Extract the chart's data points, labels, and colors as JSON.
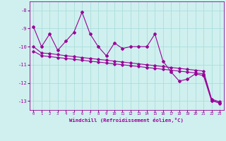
{
  "xlabel": "Windchill (Refroidissement éolien,°C)",
  "background_color": "#cff0ee",
  "grid_color": "#aadddd",
  "line_color": "#990099",
  "x": [
    0,
    1,
    2,
    3,
    4,
    5,
    6,
    7,
    8,
    9,
    10,
    11,
    12,
    13,
    14,
    15,
    16,
    17,
    18,
    19,
    20,
    21,
    22,
    23
  ],
  "y_main": [
    -8.9,
    -10.0,
    -9.3,
    -10.2,
    -9.7,
    -9.2,
    -8.1,
    -9.3,
    -10.0,
    -10.5,
    -9.8,
    -10.1,
    -10.0,
    -10.0,
    -10.0,
    -9.3,
    -10.8,
    -11.4,
    -11.9,
    -11.8,
    -11.5,
    -11.6,
    -13.0,
    -13.1
  ],
  "y_upper": [
    -10.0,
    -10.35,
    -10.38,
    -10.44,
    -10.5,
    -10.55,
    -10.6,
    -10.65,
    -10.7,
    -10.75,
    -10.8,
    -10.85,
    -10.9,
    -10.95,
    -11.0,
    -11.05,
    -11.1,
    -11.15,
    -11.2,
    -11.25,
    -11.3,
    -11.35,
    -12.9,
    -13.05
  ],
  "y_lower": [
    -10.25,
    -10.5,
    -10.55,
    -10.6,
    -10.65,
    -10.7,
    -10.75,
    -10.8,
    -10.85,
    -10.9,
    -10.95,
    -11.0,
    -11.05,
    -11.1,
    -11.15,
    -11.2,
    -11.25,
    -11.3,
    -11.35,
    -11.4,
    -11.45,
    -11.5,
    -12.92,
    -13.15
  ],
  "ylim": [
    -13.5,
    -7.5
  ],
  "yticks": [
    -13,
    -12,
    -11,
    -10,
    -9,
    -8
  ],
  "xticks": [
    0,
    1,
    2,
    3,
    4,
    5,
    6,
    7,
    8,
    9,
    10,
    11,
    12,
    13,
    14,
    15,
    16,
    17,
    18,
    19,
    20,
    21,
    22,
    23
  ],
  "label_color": "#990099"
}
